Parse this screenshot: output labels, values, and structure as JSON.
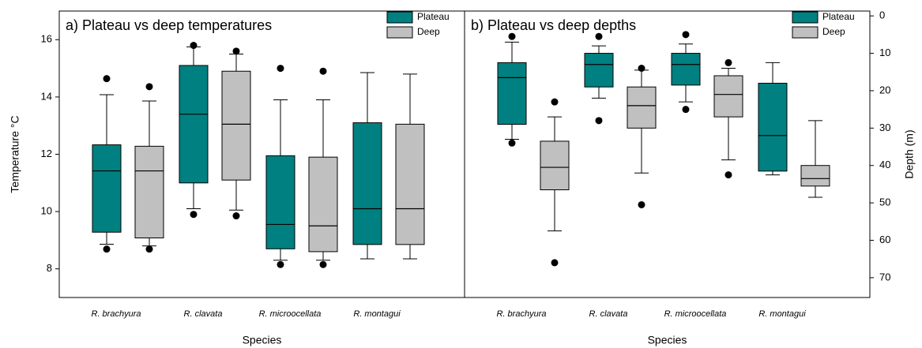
{
  "chart_data": [
    {
      "type": "box",
      "title": "a) Plateau vs deep temperatures",
      "x_label": "Species",
      "y_label": "Temperature °C",
      "axis_side": "left",
      "y_inverted": false,
      "ylim": [
        7,
        17
      ],
      "yticks": [
        8,
        10,
        12,
        14,
        16
      ],
      "categories": [
        "R. brachyura",
        "R. clavata",
        "R. microocellata",
        "R. montagui"
      ],
      "legend": "upper right",
      "series": [
        {
          "name": "Plateau",
          "color": "#008080",
          "whisker_low": [
            8.86,
            10.1,
            8.3,
            8.35
          ],
          "q1": [
            9.28,
            11.0,
            8.7,
            8.85
          ],
          "median": [
            11.42,
            13.4,
            9.55,
            10.1
          ],
          "q3": [
            12.33,
            15.1,
            11.95,
            13.1
          ],
          "whisker_high": [
            14.08,
            15.75,
            13.9,
            14.85
          ],
          "outliers": [
            [
              14.64,
              8.69
            ],
            [
              15.8,
              9.9
            ],
            [
              15.0,
              8.15
            ],
            []
          ]
        },
        {
          "name": "Deep",
          "color": "#c0c0c0",
          "whisker_low": [
            8.8,
            10.05,
            8.3,
            8.35
          ],
          "q1": [
            9.08,
            11.1,
            8.6,
            8.85
          ],
          "median": [
            11.42,
            13.05,
            9.5,
            10.1
          ],
          "q3": [
            12.28,
            14.9,
            11.9,
            13.05
          ],
          "whisker_high": [
            13.86,
            15.5,
            13.9,
            14.8
          ],
          "outliers": [
            [
              14.36,
              8.69
            ],
            [
              15.6,
              9.85
            ],
            [
              14.9,
              8.15
            ],
            []
          ]
        }
      ]
    },
    {
      "type": "box",
      "title": "b) Plateau vs deep depths",
      "x_label": "Species",
      "y_label": "Depth (m)",
      "axis_side": "right",
      "y_inverted": true,
      "ylim": [
        -1.3,
        75.3
      ],
      "yticks": [
        0,
        10,
        20,
        30,
        40,
        50,
        60,
        70
      ],
      "categories": [
        "R. brachyura",
        "R. clavata",
        "R. microocellata",
        "R. montagui"
      ],
      "legend": "upper right",
      "series": [
        {
          "name": "Plateau",
          "color": "#008080",
          "whisker_low": [
            33,
            22,
            23,
            42.5
          ],
          "q1": [
            29,
            19,
            18.5,
            41.5
          ],
          "median": [
            16.5,
            13,
            13,
            32
          ],
          "q3": [
            12.5,
            10,
            10,
            18
          ],
          "whisker_high": [
            7,
            8,
            7.5,
            12.5
          ],
          "outliers": [
            [
              5.5,
              34
            ],
            [
              5.5,
              28
            ],
            [
              5,
              25
            ],
            []
          ]
        },
        {
          "name": "Deep",
          "color": "#c0c0c0",
          "whisker_low": [
            57.5,
            42,
            38.5,
            48.5
          ],
          "q1": [
            46.5,
            30,
            27,
            45.5
          ],
          "median": [
            40.5,
            24,
            21,
            43.5
          ],
          "q3": [
            33.5,
            19,
            16,
            40
          ],
          "whisker_high": [
            27,
            14.5,
            14,
            28
          ],
          "outliers": [
            [
              23,
              66
            ],
            [
              14,
              50.5
            ],
            [
              12.5,
              42.5
            ],
            []
          ]
        }
      ]
    }
  ]
}
